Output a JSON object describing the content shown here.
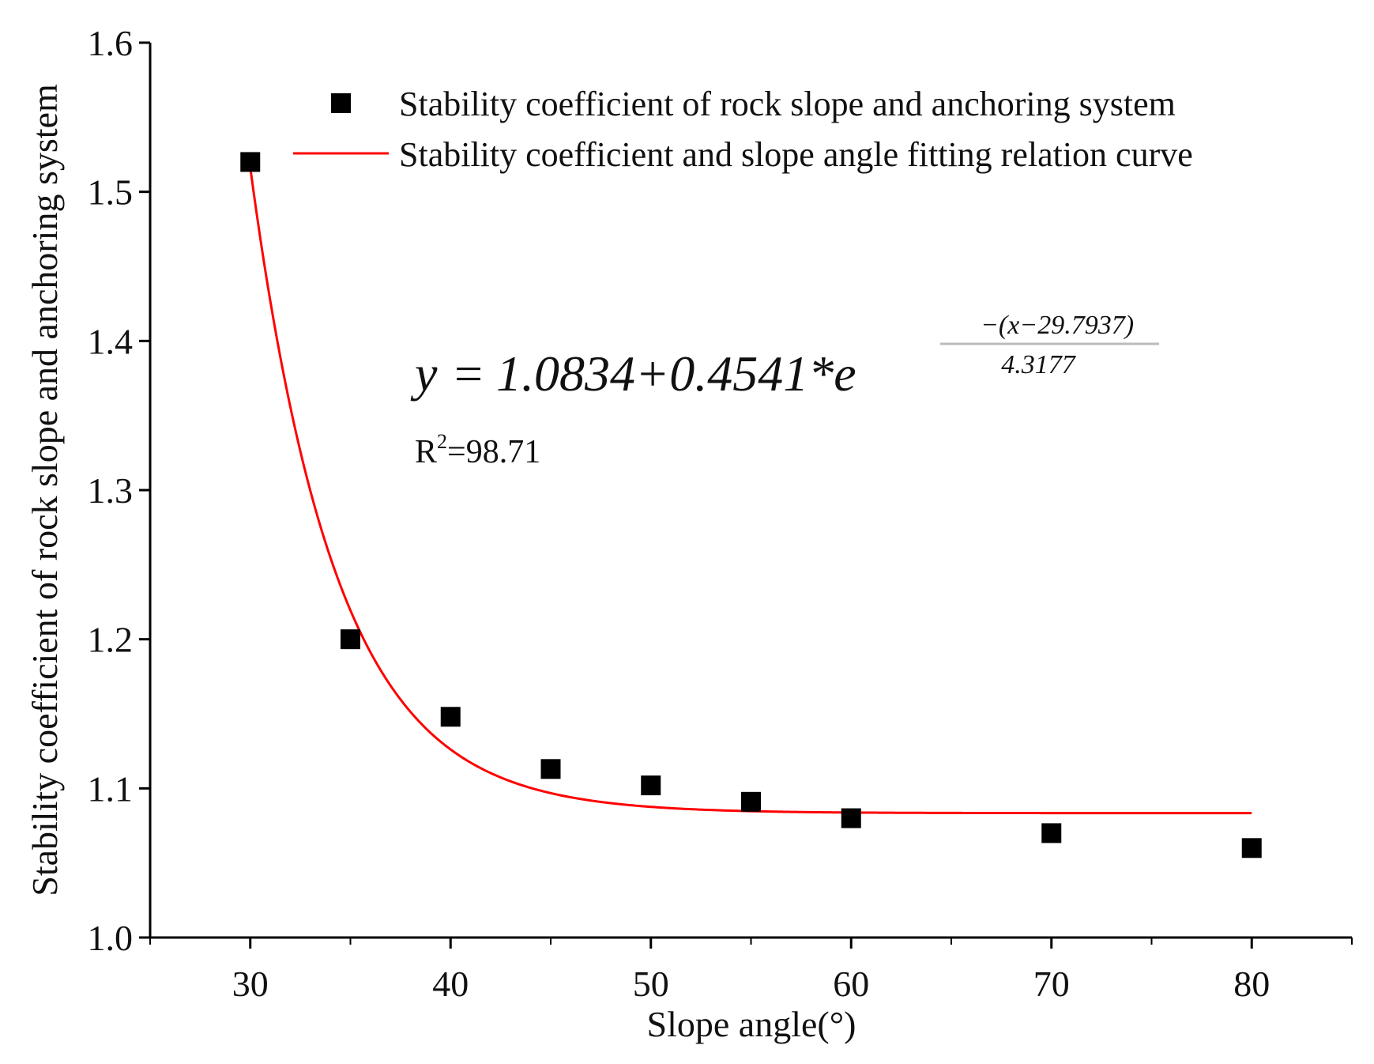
{
  "chart_data": {
    "type": "scatter",
    "title": "",
    "xlabel": "Slope angle(°)",
    "ylabel": "Stability coefficient of rock slope and anchoring system",
    "xlim": [
      25,
      85
    ],
    "ylim": [
      1.0,
      1.6
    ],
    "x_ticks": [
      30,
      40,
      50,
      60,
      70,
      80
    ],
    "x_tick_labels": [
      "30",
      "40",
      "50",
      "60",
      "70",
      "80"
    ],
    "x_minor_ticks": [
      25,
      35,
      45,
      55,
      65,
      75,
      85
    ],
    "y_ticks": [
      1.0,
      1.1,
      1.2,
      1.3,
      1.4,
      1.5,
      1.6
    ],
    "y_tick_labels": [
      "1.0",
      "1.1",
      "1.2",
      "1.3",
      "1.4",
      "1.5",
      "1.6"
    ],
    "grid": false,
    "legend_position": "top-right",
    "series": [
      {
        "name": "Stability coefficient of rock slope and anchoring system",
        "kind": "scatter",
        "marker": "square",
        "color": "#000000",
        "x": [
          30,
          35,
          40,
          45,
          50,
          55,
          60,
          70,
          80
        ],
        "y": [
          1.52,
          1.2,
          1.148,
          1.113,
          1.102,
          1.091,
          1.08,
          1.07,
          1.06
        ]
      },
      {
        "name": "Stability coefficient and slope angle fitting relation curve",
        "kind": "line",
        "color": "#ff0000",
        "model": {
          "y0": 1.0834,
          "A": 0.4541,
          "x0": 29.7937,
          "t": 4.3177
        },
        "x_range": [
          30,
          80
        ]
      }
    ],
    "annotations": {
      "equation": {
        "lhs": "y",
        "equals": "=",
        "rhs": "1.0834+0.4541*e",
        "exp_numerator": "−(x−29.7937)",
        "exp_denominator": "4.3177"
      },
      "r2": {
        "label": "R",
        "sup": "2",
        "value": "=98.71"
      }
    }
  }
}
